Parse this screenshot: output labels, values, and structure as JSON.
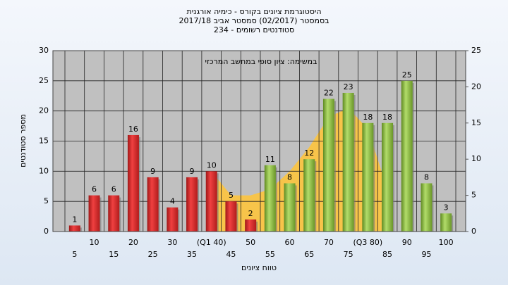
{
  "chart_data": {
    "type": "bar",
    "title": [
      "היסטוגרמת ציונים בקורס - כימיה אורגנית",
      "בסמסטר  (02/2017)  סמסטר אביב 2017/18",
      "סטודנטים רשומים - 234"
    ],
    "annotation": "במשימה: ציון סופי במחשב המרכזי",
    "y_label": "מספר סטודנטים",
    "x_label": "טווח ציונים",
    "categories": [
      "5",
      "10",
      "15",
      "20",
      "25",
      "30",
      "35",
      "(Q1 40)",
      "45",
      "50",
      "55",
      "60",
      "65",
      "70",
      "75",
      "(Q3 80)",
      "85",
      "90",
      "95",
      "100"
    ],
    "values": [
      1,
      6,
      6,
      16,
      9,
      4,
      9,
      10,
      5,
      2,
      11,
      8,
      12,
      22,
      23,
      18,
      18,
      25,
      8,
      3
    ],
    "colors": [
      "#e03030",
      "#e03030",
      "#e03030",
      "#e03030",
      "#e03030",
      "#e03030",
      "#e03030",
      "#e03030",
      "#e03030",
      "#e03030",
      "#8cbf3f",
      "#8cbf3f",
      "#8cbf3f",
      "#8cbf3f",
      "#8cbf3f",
      "#8cbf3f",
      "#8cbf3f",
      "#8cbf3f",
      "#8cbf3f",
      "#8cbf3f"
    ],
    "area_values": [
      null,
      null,
      null,
      null,
      null,
      null,
      null,
      10,
      6,
      6,
      7,
      10,
      14,
      19,
      20.5,
      17,
      7,
      null,
      null,
      null
    ],
    "area_color": "#f7c44a",
    "ylim": [
      0,
      30
    ],
    "yticks": [
      0,
      5,
      10,
      15,
      20,
      25,
      30
    ],
    "y2lim": [
      0,
      25
    ],
    "y2ticks": [
      0,
      5,
      10,
      15,
      20,
      25
    ],
    "grid": true
  }
}
